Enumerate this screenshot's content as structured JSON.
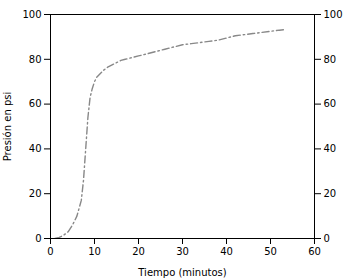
{
  "chart_data": {
    "type": "line",
    "xlabel": "Tiempo (minutos)",
    "ylabel": "Presión en psi",
    "x": [
      1,
      2,
      3,
      4,
      5,
      6,
      7,
      7.5,
      8,
      8.5,
      9,
      9.5,
      10,
      10.5,
      11,
      12,
      13,
      14,
      15,
      16,
      17,
      18,
      19,
      20,
      22,
      24,
      26,
      28,
      30,
      32,
      34,
      36,
      38,
      40,
      42,
      44,
      46,
      48,
      50,
      52,
      53
    ],
    "values": [
      0,
      0.5,
      1.5,
      3,
      6,
      10,
      17,
      26,
      40,
      54,
      63,
      67,
      70,
      72,
      73,
      75,
      76.5,
      77.5,
      78.5,
      79.5,
      80,
      80.5,
      81,
      81.5,
      82.5,
      83.5,
      84.5,
      85.5,
      86.5,
      87,
      87.5,
      88,
      88.5,
      89.5,
      90.5,
      91,
      91.5,
      92,
      92.5,
      93,
      93.2
    ],
    "color": "#888888",
    "line_style": "dashdot",
    "xlim": [
      0,
      60
    ],
    "ylim": [
      0,
      100
    ],
    "xticks": [
      0,
      10,
      20,
      30,
      40,
      50,
      60
    ],
    "yticks": [
      0,
      20,
      40,
      60,
      80,
      100
    ],
    "y2lim": [
      0,
      100
    ],
    "y2ticks": [
      0,
      20,
      40,
      60,
      80,
      100
    ],
    "grid": false
  }
}
